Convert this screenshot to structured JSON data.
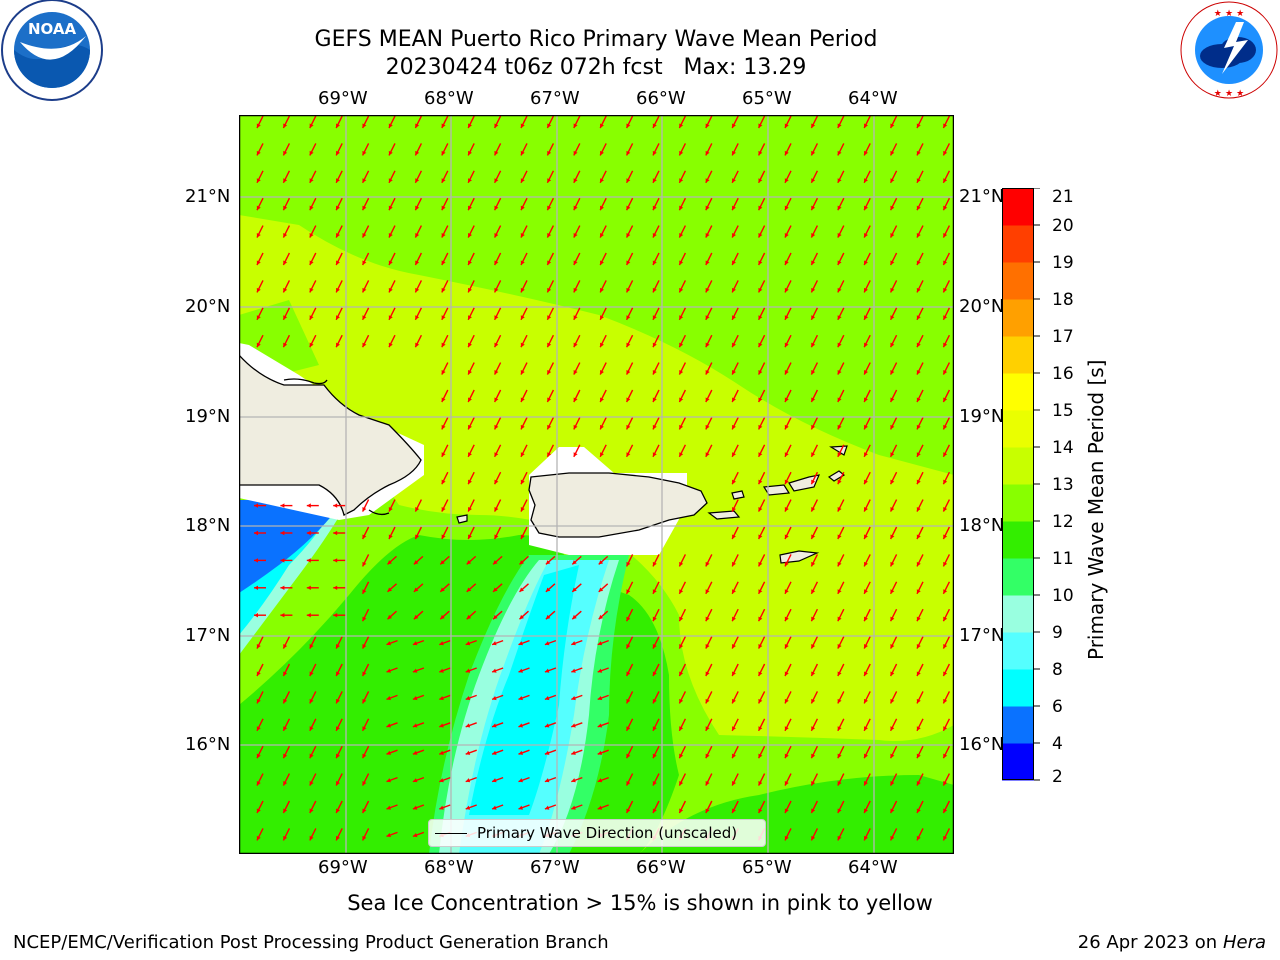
{
  "header": {
    "title_line1": "GEFS MEAN Puerto Rico Primary Wave Mean Period",
    "title_line2": "20230424 t06z 072h fcst   Max: 13.29"
  },
  "map": {
    "lon_labels": [
      "69°W",
      "68°W",
      "67°W",
      "66°W",
      "65°W",
      "64°W"
    ],
    "lat_labels": [
      "21°N",
      "20°N",
      "19°N",
      "18°N",
      "17°N",
      "16°N"
    ],
    "legend_text": "Primary Wave Direction (unscaled)",
    "arrow_color": "#ff0000"
  },
  "colorbar": {
    "label": "Primary Wave Mean Period [s]",
    "levels": [
      2,
      4,
      6,
      8,
      9,
      10,
      11,
      12,
      13,
      14,
      15,
      16,
      17,
      18,
      19,
      20,
      21
    ],
    "colors": [
      "#0000ff",
      "#0a72ff",
      "#00ffff",
      "#55ffff",
      "#99ffe0",
      "#33ff66",
      "#33ee00",
      "#88ff00",
      "#c8ff00",
      "#eaff00",
      "#ffff00",
      "#ffd000",
      "#ffa000",
      "#ff7000",
      "#ff3f00",
      "#ff0000"
    ],
    "tick_labels": [
      "2",
      "4",
      "6",
      "8",
      "9",
      "10",
      "11",
      "12",
      "13",
      "14",
      "15",
      "16",
      "17",
      "18",
      "19",
      "20",
      "21"
    ]
  },
  "caption": "Sea Ice Concentration > 15% is shown in pink to yellow",
  "footer": {
    "left": "NCEP/EMC/Verification Post Processing Product Generation Branch",
    "right_date": "26 Apr 2023 on",
    "right_machine": "Hera"
  },
  "logos": {
    "noaa_text": "NOAA",
    "noaa_ring_text": "NATIONAL OCEANIC AND ATMOSPHERIC ADMINISTRATION",
    "noaa_ring_bottom": "U.S. DEPARTMENT OF COMMERCE",
    "nws_ring_text": "NATIONAL WEATHER SERVICE"
  }
}
